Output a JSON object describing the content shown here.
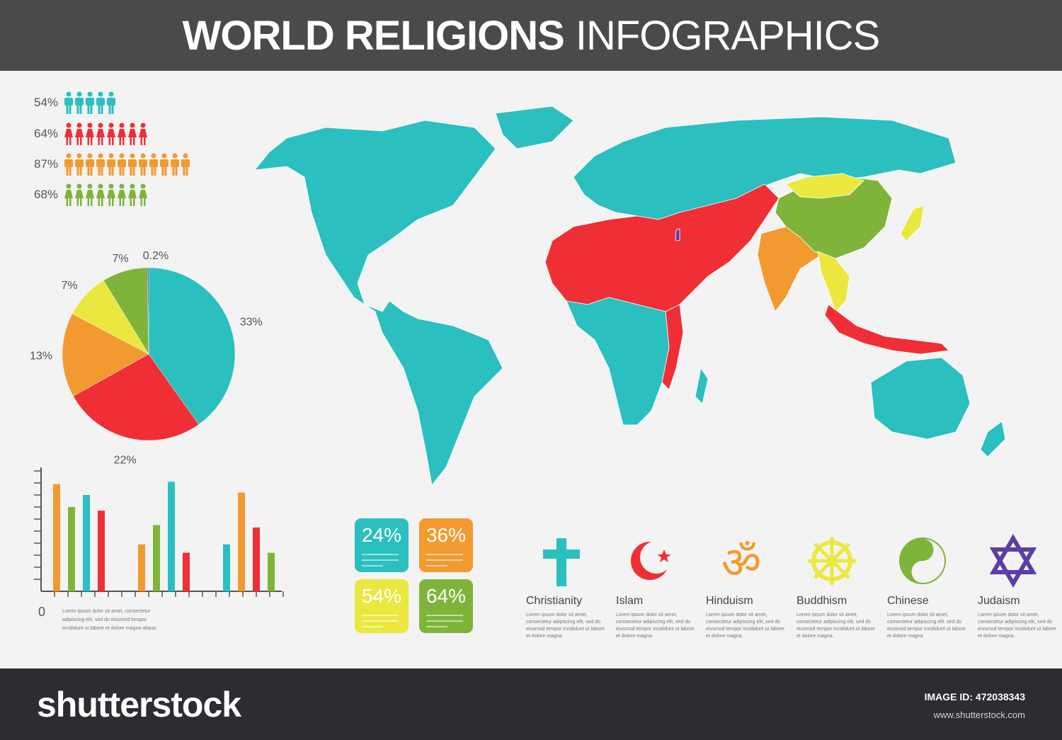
{
  "header": {
    "title_bold": "WORLD RELIGIONS",
    "title_light": "INFOGRAPHICS"
  },
  "colors": {
    "teal": "#2bbfbf",
    "red": "#ef2f35",
    "orange": "#f29a2f",
    "yellow": "#eae83f",
    "green": "#7fb43a",
    "purple": "#5b3ea5",
    "header_bg": "#4a4a4a",
    "footer_bg": "#2b2d33"
  },
  "people_rows": [
    {
      "label": "54%",
      "count": 5,
      "color": "#2bbfbf",
      "figure": "man"
    },
    {
      "label": "64%",
      "count": 8,
      "color": "#ef2f35",
      "figure": "woman"
    },
    {
      "label": "87%",
      "count": 12,
      "color": "#f29a2f",
      "figure": "man"
    },
    {
      "label": "68%",
      "count": 8,
      "color": "#7fb43a",
      "figure": "woman"
    }
  ],
  "chart_data": [
    {
      "type": "pie",
      "slices": [
        {
          "label": "33%",
          "value": 33,
          "color": "#2bbfbf"
        },
        {
          "label": "22%",
          "value": 22,
          "color": "#ef2f35"
        },
        {
          "label": "13%",
          "value": 13,
          "color": "#f29a2f"
        },
        {
          "label": "7%",
          "value": 7,
          "color": "#eae83f"
        },
        {
          "label": "7%",
          "value": 7,
          "color": "#7fb43a"
        },
        {
          "label": "0.2%",
          "value": 0.2,
          "color": "#5b3ea5"
        }
      ]
    },
    {
      "type": "bar",
      "ylabel": "0",
      "ylim": [
        0,
        10
      ],
      "y_ticks": 10,
      "groups": [
        {
          "values": [
            {
              "value": 8.9,
              "color": "#f29a2f"
            },
            {
              "value": 7.0,
              "color": "#7fb43a"
            },
            {
              "value": 8.0,
              "color": "#2bbfbf"
            },
            {
              "value": 6.7,
              "color": "#ef2f35"
            }
          ]
        },
        {
          "values": [
            {
              "value": 3.9,
              "color": "#f29a2f"
            },
            {
              "value": 5.5,
              "color": "#7fb43a"
            },
            {
              "value": 9.1,
              "color": "#2bbfbf"
            },
            {
              "value": 3.2,
              "color": "#ef2f35"
            }
          ]
        },
        {
          "values": [
            {
              "value": 3.9,
              "color": "#2bbfbf"
            },
            {
              "value": 8.2,
              "color": "#f29a2f"
            },
            {
              "value": 5.3,
              "color": "#ef2f35"
            },
            {
              "value": 3.2,
              "color": "#7fb43a"
            }
          ]
        }
      ]
    }
  ],
  "bar_note": "Lorem ipsum dolor sit amet, consectetur adipiscing elit, sed do eiusmod tempor incididunt ut labore et dolore magna aliqua.",
  "stat_boxes": [
    {
      "value": "24%",
      "color": "#2bbfbf"
    },
    {
      "value": "36%",
      "color": "#f29a2f"
    },
    {
      "value": "54%",
      "color": "#eae83f"
    },
    {
      "value": "64%",
      "color": "#7fb43a"
    }
  ],
  "religions": [
    {
      "name": "Christianity",
      "icon": "cross-icon",
      "color": "#2bbfbf",
      "desc": "Lorem ipsum dolor sit amet, consectetur adipiscing elit, sed do eiusmod tempor incididunt ut labore et dolore magna."
    },
    {
      "name": "Islam",
      "icon": "crescent-star-icon",
      "color": "#ef2f35",
      "desc": "Lorem ipsum dolor sit amet, consectetur adipiscing elit, sed do eiusmod tempor incididunt ut labore et dolore magna."
    },
    {
      "name": "Hinduism",
      "icon": "om-icon",
      "color": "#f29a2f",
      "desc": "Lorem ipsum dolor sit amet, consectetur adipiscing elit, sed do eiusmod tempor incididunt ut labore et dolore magna."
    },
    {
      "name": "Buddhism",
      "icon": "dharma-wheel-icon",
      "color": "#eae83f",
      "desc": "Lorem ipsum dolor sit amet, consectetur adipiscing elit, sed do eiusmod tempor incididunt ut labore et dolore magna."
    },
    {
      "name": "Chinese",
      "icon": "yin-yang-icon",
      "color": "#7fb43a",
      "desc": "Lorem ipsum dolor sit amet, consectetur adipiscing elit, sed do eiusmod tempor incididunt ut labore et dolore magna."
    },
    {
      "name": "Judaism",
      "icon": "star-of-david-icon",
      "color": "#5b3ea5",
      "desc": "Lorem ipsum dolor sit amet, consectetur adipiscing elit, sed do eiusmod tempor incididunt ut labore et dolore magna."
    }
  ],
  "map": {
    "regions": [
      {
        "name": "americas",
        "color": "#2bbfbf"
      },
      {
        "name": "europe-russia",
        "color": "#2bbfbf"
      },
      {
        "name": "africa-south",
        "color": "#2bbfbf"
      },
      {
        "name": "australia",
        "color": "#2bbfbf"
      },
      {
        "name": "north-africa-middle-east",
        "color": "#ef2f35"
      },
      {
        "name": "indonesia",
        "color": "#ef2f35"
      },
      {
        "name": "india",
        "color": "#f29a2f"
      },
      {
        "name": "mongolia-southeast-asia",
        "color": "#eae83f"
      },
      {
        "name": "china",
        "color": "#7fb43a"
      },
      {
        "name": "japan",
        "color": "#eae83f"
      },
      {
        "name": "israel",
        "color": "#5b3ea5"
      }
    ]
  },
  "footer": {
    "logo": "shutterstock",
    "image_id": "IMAGE ID: 472038343",
    "url": "www.shutterstock.com"
  }
}
